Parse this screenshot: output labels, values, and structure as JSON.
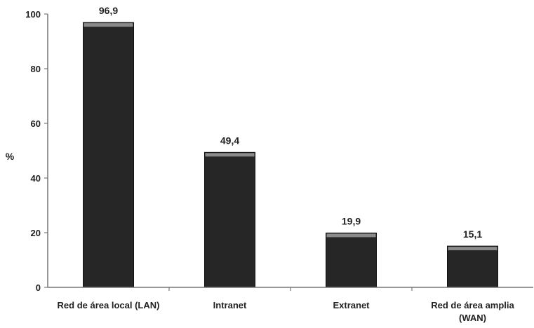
{
  "chart_data": {
    "type": "bar",
    "ylabel": "%",
    "ylim": [
      0,
      100
    ],
    "yticks": [
      0,
      20,
      40,
      60,
      80,
      100
    ],
    "categories": [
      [
        "Red de área local (LAN)"
      ],
      [
        "Intranet"
      ],
      [
        "Extranet"
      ],
      [
        "Red de área amplia",
        "(WAN)"
      ]
    ],
    "values": [
      96.9,
      49.4,
      19.9,
      15.1
    ],
    "data_labels": [
      "96,9",
      "49,4",
      "19,9",
      "15,1"
    ],
    "bar_color": "#262626",
    "grid": false,
    "legend": "none"
  }
}
